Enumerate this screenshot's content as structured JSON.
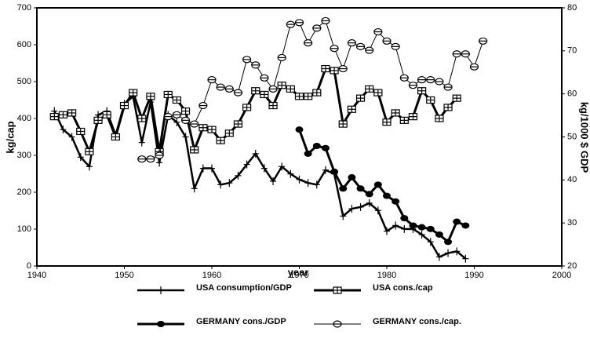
{
  "chart_data": {
    "type": "line",
    "x_label": "year",
    "y_label": "kg/cap",
    "y2_label": "kg/1000 $ GDP",
    "x": [
      1942,
      1943,
      1944,
      1945,
      1946,
      1947,
      1948,
      1949,
      1950,
      1951,
      1952,
      1953,
      1954,
      1955,
      1956,
      1957,
      1958,
      1959,
      1960,
      1961,
      1962,
      1963,
      1964,
      1965,
      1966,
      1967,
      1968,
      1969,
      1970,
      1971,
      1972,
      1973,
      1974,
      1975,
      1976,
      1977,
      1978,
      1979,
      1980,
      1981,
      1982,
      1983,
      1984,
      1985,
      1986,
      1987,
      1988,
      1989,
      1990,
      1991
    ],
    "xlim": [
      1940,
      2000
    ],
    "xticks": [
      1940,
      1950,
      1960,
      1970,
      1980,
      1990,
      2000
    ],
    "ylim": [
      0,
      700
    ],
    "yticks": [
      0,
      100,
      200,
      300,
      400,
      500,
      600,
      700
    ],
    "y2lim": [
      20,
      80
    ],
    "y2ticks": [
      20,
      30,
      40,
      50,
      60,
      70,
      80
    ],
    "series": [
      {
        "name": "USA consumption/GDP",
        "color": "#000000",
        "marker": "plus",
        "axis": "y2",
        "values": [
          56,
          51.7,
          50,
          45.3,
          43.1,
          55.1,
          56,
          50.4,
          57.7,
          59.4,
          48.7,
          58.1,
          44,
          55.1,
          53.4,
          50,
          38,
          42.7,
          42.7,
          38.9,
          39.3,
          41,
          43.6,
          46.1,
          42.7,
          39.7,
          43.1,
          41.4,
          40.1,
          39.3,
          38.9,
          42.3,
          41.4,
          31.6,
          33.3,
          33.7,
          34.6,
          32.9,
          28.1,
          29.4,
          28.6,
          28.6,
          27.3,
          25.6,
          22.1,
          23,
          23.4,
          21.7,
          null,
          null
        ]
      },
      {
        "name": "USA cons./cap",
        "color": "#000000",
        "marker": "square",
        "values": [
          405,
          410,
          415,
          365,
          310,
          395,
          410,
          350,
          435,
          470,
          400,
          460,
          310,
          465,
          450,
          420,
          315,
          375,
          370,
          340,
          360,
          385,
          430,
          475,
          465,
          435,
          490,
          480,
          460,
          460,
          470,
          535,
          530,
          385,
          425,
          455,
          480,
          470,
          390,
          415,
          395,
          405,
          475,
          450,
          400,
          430,
          455,
          null,
          null,
          null
        ]
      },
      {
        "name": "GERMANY cons./GDP",
        "color": "#000000",
        "marker": "filled-circle",
        "axis": "y2",
        "values": [
          null,
          null,
          null,
          null,
          null,
          null,
          null,
          null,
          null,
          null,
          null,
          null,
          null,
          null,
          null,
          null,
          null,
          null,
          null,
          null,
          null,
          null,
          null,
          null,
          null,
          null,
          null,
          null,
          51.7,
          46.1,
          47.9,
          47.4,
          41.9,
          38,
          40.6,
          38,
          36.7,
          38.9,
          36.3,
          35,
          31.1,
          29.4,
          29,
          28.6,
          27.3,
          25.6,
          30.3,
          29.4,
          null,
          null
        ]
      },
      {
        "name": "GERMANY cons./cap.",
        "color": "#000000",
        "marker": "open-circle",
        "values": [
          null,
          null,
          null,
          null,
          null,
          null,
          null,
          null,
          null,
          null,
          290,
          290,
          300,
          405,
          410,
          395,
          385,
          435,
          505,
          485,
          480,
          470,
          560,
          545,
          510,
          480,
          565,
          655,
          660,
          605,
          645,
          665,
          590,
          535,
          605,
          595,
          585,
          635,
          610,
          595,
          510,
          490,
          505,
          505,
          500,
          485,
          575,
          575,
          540,
          610
        ]
      }
    ]
  }
}
